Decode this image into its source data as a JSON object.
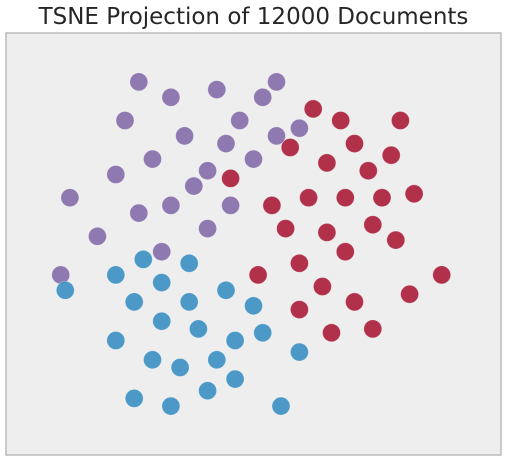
{
  "chart_data": {
    "type": "scatter",
    "title": "TSNE Projection of 12000 Documents",
    "xlabel": "",
    "ylabel": "",
    "xlim": [
      0,
      100
    ],
    "ylim": [
      0,
      100
    ],
    "grid": false,
    "legend": "none",
    "colors": {
      "background": "#eeeeee",
      "frame": "#bbbbbb"
    },
    "series": [
      {
        "color": "#a50f2b",
        "values": [
          [
            69,
            82
          ],
          [
            72,
            76
          ],
          [
            66,
            71
          ],
          [
            75,
            69
          ],
          [
            80,
            73
          ],
          [
            85,
            63
          ],
          [
            62,
            62
          ],
          [
            66,
            53
          ],
          [
            70,
            48
          ],
          [
            76,
            55
          ],
          [
            81,
            51
          ],
          [
            57,
            54
          ],
          [
            60,
            45
          ],
          [
            65,
            39
          ],
          [
            72,
            35
          ],
          [
            76,
            28
          ],
          [
            67,
            27
          ],
          [
            60,
            33
          ],
          [
            84,
            37
          ],
          [
            54,
            60
          ],
          [
            58,
            75
          ],
          [
            45,
            67
          ],
          [
            51,
            42
          ],
          [
            91,
            42
          ],
          [
            70,
            62
          ],
          [
            78,
            62
          ],
          [
            63,
            85
          ],
          [
            82,
            82
          ]
        ]
      },
      {
        "color": "#7d64a5",
        "values": [
          [
            32,
            88
          ],
          [
            42,
            90
          ],
          [
            52,
            88
          ],
          [
            22,
            82
          ],
          [
            35,
            78
          ],
          [
            47,
            82
          ],
          [
            55,
            78
          ],
          [
            28,
            72
          ],
          [
            40,
            69
          ],
          [
            20,
            68
          ],
          [
            25,
            58
          ],
          [
            32,
            60
          ],
          [
            40,
            54
          ],
          [
            45,
            60
          ],
          [
            30,
            48
          ],
          [
            10,
            62
          ],
          [
            8,
            42
          ],
          [
            16,
            52
          ],
          [
            37,
            65
          ],
          [
            50,
            72
          ],
          [
            55,
            92
          ],
          [
            25,
            92
          ],
          [
            44,
            76
          ],
          [
            60,
            80
          ]
        ]
      },
      {
        "color": "#2f8ac0",
        "values": [
          [
            30,
            40
          ],
          [
            36,
            45
          ],
          [
            44,
            38
          ],
          [
            24,
            35
          ],
          [
            30,
            30
          ],
          [
            38,
            28
          ],
          [
            46,
            25
          ],
          [
            28,
            20
          ],
          [
            20,
            25
          ],
          [
            34,
            18
          ],
          [
            40,
            12
          ],
          [
            24,
            10
          ],
          [
            32,
            8
          ],
          [
            46,
            15
          ],
          [
            56,
            8
          ],
          [
            52,
            27
          ],
          [
            50,
            34
          ],
          [
            20,
            42
          ],
          [
            26,
            46
          ],
          [
            9,
            38
          ],
          [
            60,
            22
          ],
          [
            36,
            35
          ],
          [
            42,
            20
          ]
        ]
      }
    ]
  }
}
